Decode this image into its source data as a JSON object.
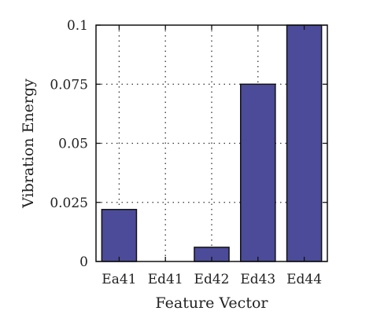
{
  "chart_data": {
    "type": "bar",
    "categories": [
      "Ea41",
      "Ed41",
      "Ed42",
      "Ed43",
      "Ed44"
    ],
    "values": [
      0.022,
      0.0,
      0.006,
      0.075,
      0.1
    ],
    "xlabel": "Feature Vector",
    "ylabel": "Vibration Energy",
    "ylim": [
      0,
      0.1
    ],
    "yticks": [
      0,
      0.025,
      0.05,
      0.075,
      0.1
    ],
    "ytick_labels": [
      "0",
      "0.025",
      "0.05",
      "0.075",
      "0.1"
    ],
    "grid": true,
    "colors": {
      "bar": "#4b4b9a",
      "bar_edge": "#111111",
      "grid": "#333333"
    }
  }
}
